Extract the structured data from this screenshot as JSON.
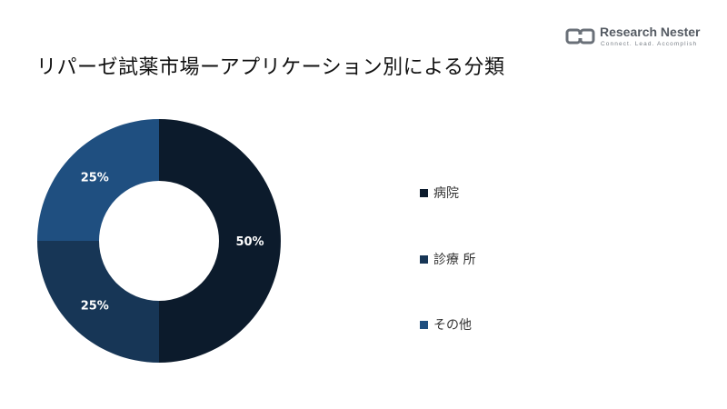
{
  "title": "リパーゼ試薬市場ーアプリケーション別による分類",
  "logo": {
    "name": "Research Nester",
    "tagline": "Connect. Lead. Accomplish",
    "icon": "research-nester-logo-icon"
  },
  "chart_data": {
    "type": "pie",
    "title": "リパーゼ試薬市場ーアプリケーション別による分類",
    "donut": true,
    "legend_position": "right",
    "categories": [
      "病院",
      "診療 所",
      "その他"
    ],
    "values": [
      50,
      25,
      25
    ],
    "labels": [
      "50%",
      "25%",
      "25%"
    ],
    "colors": [
      "#0c1b2c",
      "#173656",
      "#1f4f80"
    ]
  }
}
